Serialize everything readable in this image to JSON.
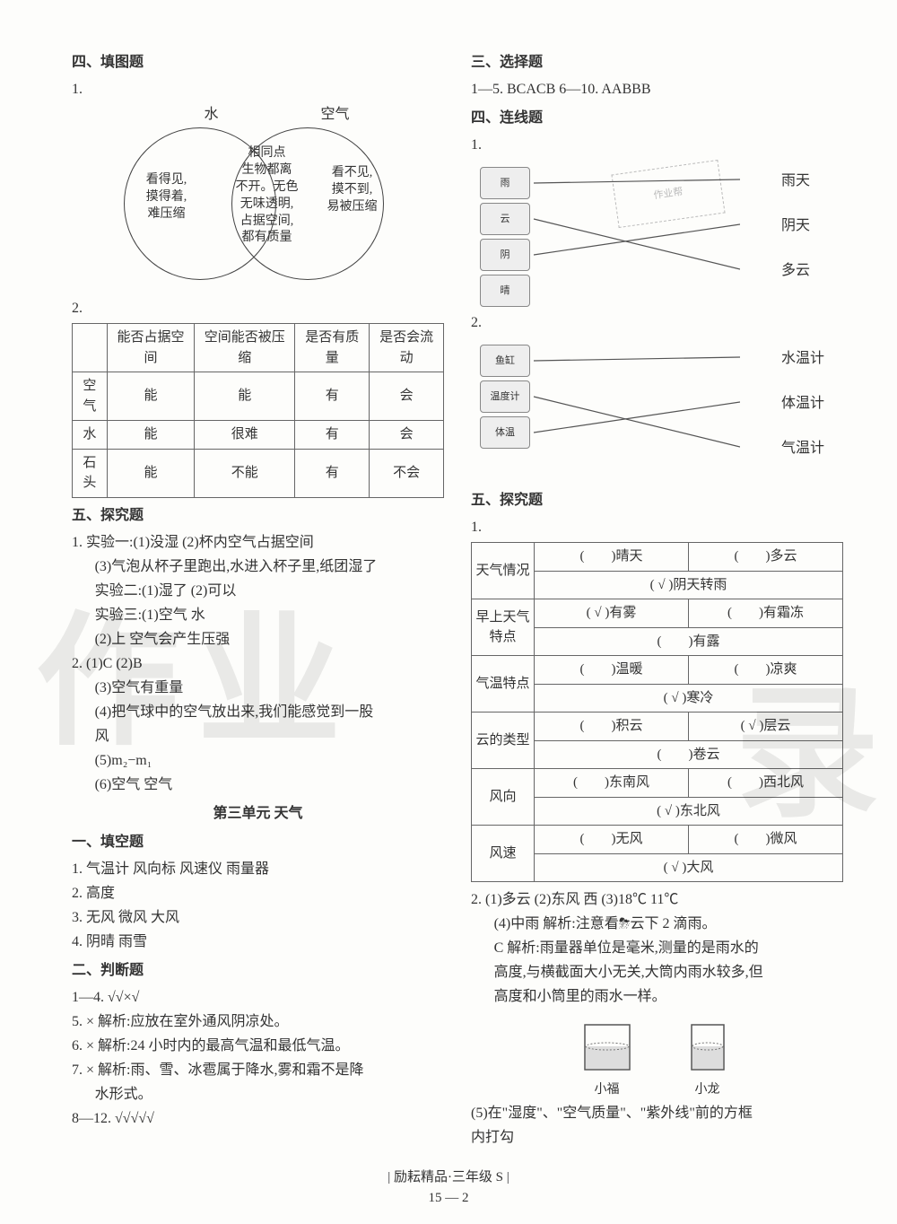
{
  "left": {
    "sec4_title": "四、填图题",
    "q1_num": "1.",
    "venn": {
      "left_label": "水",
      "right_label": "空气",
      "left_text": "看得见,\n摸得着,\n难压缩",
      "center_text": "相同点\n生物都离\n不开。无色\n无味透明,\n占据空间,\n都有质量",
      "right_text": "看不见,\n摸不到,\n易被压缩",
      "circle_color": "#444444",
      "text_fontsize": 14
    },
    "q2_num": "2.",
    "table2": {
      "headers": [
        "",
        "能否占据空间",
        "空间能否被压缩",
        "是否有质量",
        "是否会流动"
      ],
      "rows": [
        [
          "空气",
          "能",
          "能",
          "有",
          "会"
        ],
        [
          "水",
          "能",
          "很难",
          "有",
          "会"
        ],
        [
          "石头",
          "能",
          "不能",
          "有",
          "不会"
        ]
      ],
      "border_color": "#666666"
    },
    "sec5_title": "五、探究题",
    "sec5_lines": [
      "1. 实验一:(1)没湿  (2)杯内空气占据空间",
      "   (3)气泡从杯子里跑出,水进入杯子里,纸团湿了",
      "   实验二:(1)湿了  (2)可以",
      "   实验三:(1)空气  水",
      "   (2)上  空气会产生压强",
      "2. (1)C  (2)B",
      "   (3)空气有重量",
      "   (4)把气球中的空气放出来,我们能感觉到一股",
      "   风",
      "   (5)m₂−m₁",
      "   (6)空气  空气"
    ],
    "unit3_title": "第三单元  天气",
    "sec1b_title": "一、填空题",
    "sec1b_lines": [
      "1. 气温计  风向标  风速仪  雨量器",
      "2. 高度",
      "3. 无风  微风  大风",
      "4. 阴晴  雨雪"
    ],
    "sec2b_title": "二、判断题",
    "sec2b_lines": [
      "1—4. √√×√",
      "5. ×  解析:应放在室外通风阴凉处。",
      "6. ×  解析:24 小时内的最高气温和最低气温。",
      "7. ×  解析:雨、雪、冰雹属于降水,雾和霜不是降",
      "   水形式。",
      "8—12. √√√√√"
    ]
  },
  "right": {
    "sec3_title": "三、选择题",
    "sec3_answer": "1—5. BCACB  6—10. AABBB",
    "sec4b_title": "四、连线题",
    "match1": {
      "q": "1.",
      "left_icons": [
        "雨",
        "云",
        "阴",
        "晴"
      ],
      "right_labels": [
        "雨天",
        "阴天",
        "多云"
      ],
      "lines": [
        [
          0,
          0
        ],
        [
          2,
          1
        ],
        [
          1,
          2
        ]
      ],
      "line_color": "#555555"
    },
    "match2": {
      "q": "2.",
      "left_icons": [
        "鱼缸",
        "温度计",
        "体温"
      ],
      "right_labels": [
        "水温计",
        "体温计",
        "气温计"
      ],
      "lines": [
        [
          0,
          0
        ],
        [
          1,
          2
        ],
        [
          2,
          1
        ]
      ],
      "line_color": "#555555"
    },
    "sec5b_title": "五、探究题",
    "weather": {
      "q": "1.",
      "rows": [
        {
          "label": "天气情况",
          "cells": [
            "(　　)晴天",
            "(　　)多云",
            "( √ )阴天转雨",
            ""
          ]
        },
        {
          "label": "早上天气特点",
          "cells": [
            "( √ )有雾",
            "(　　)有霜冻",
            "(　　)有露",
            ""
          ]
        },
        {
          "label": "气温特点",
          "cells": [
            "(　　)温暖",
            "(　　)凉爽",
            "( √ )寒冷",
            ""
          ]
        },
        {
          "label": "云的类型",
          "cells": [
            "(　　)积云",
            "( √ )层云",
            "(　　)卷云",
            ""
          ]
        },
        {
          "label": "风向",
          "cells": [
            "(　　)东南风",
            "(　　)西北风",
            "( √ )东北风",
            ""
          ]
        },
        {
          "label": "风速",
          "cells": [
            "(　　)无风",
            "(　　)微风",
            "( √ )大风",
            ""
          ]
        }
      ]
    },
    "q2_lines": [
      "2. (1)多云  (2)东风  西  (3)18℃  11℃",
      "   (4)中雨  解析:注意看⛈云下 2 滴雨。",
      "   C  解析:雨量器单位是毫米,测量的是雨水的",
      "   高度,与横截面大小无关,大筒内雨水较多,但",
      "   高度和小筒里的雨水一样。"
    ],
    "beakers": {
      "left": "小福",
      "right": "小龙",
      "fill_color": "#dddddd",
      "stroke": "#555555"
    },
    "q2_tail": [
      "(5)在\"湿度\"、\"空气质量\"、\"紫外线\"前的方框",
      "内打勾"
    ]
  },
  "footer": {
    "brand": "| 励耘精品·三年级 S |",
    "page": "15 — 2"
  },
  "watermark": {
    "wm1": "作业",
    "wm2": "录"
  }
}
